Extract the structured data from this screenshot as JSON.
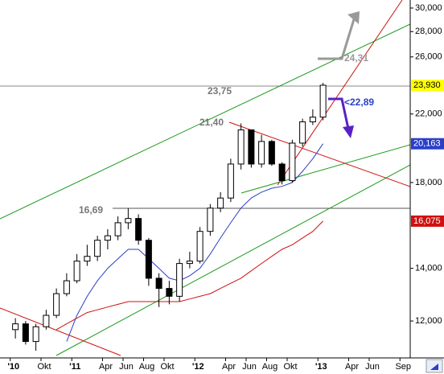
{
  "chart_data": {
    "type": "candlestick",
    "log_scale": true,
    "ylim": [
      10770,
      30715
    ],
    "yticks": [
      {
        "value": 12000,
        "label": "12,000"
      },
      {
        "value": 14000,
        "label": "14,000"
      },
      {
        "value": 18000,
        "label": "18,000"
      },
      {
        "value": 22000,
        "label": "22,000"
      },
      {
        "value": 26000,
        "label": "26,000"
      },
      {
        "value": 28000,
        "label": "28,000"
      },
      {
        "value": 30000,
        "label": "30,000"
      }
    ],
    "xlim": [
      "2010-06",
      "2013-10"
    ],
    "xticks": [
      {
        "value": "2010-07",
        "label": "'10"
      },
      {
        "value": "2010-10",
        "label": "Okt"
      },
      {
        "value": "2011-01",
        "label": "'11"
      },
      {
        "value": "2011-04",
        "label": "Apr"
      },
      {
        "value": "2011-06",
        "label": "Jun"
      },
      {
        "value": "2011-08",
        "label": "Aug"
      },
      {
        "value": "2011-10",
        "label": "Okt"
      },
      {
        "value": "2012-01",
        "label": "'12"
      },
      {
        "value": "2012-04",
        "label": "Apr"
      },
      {
        "value": "2012-06",
        "label": "Jun"
      },
      {
        "value": "2012-08",
        "label": "Aug"
      },
      {
        "value": "2012-10",
        "label": "Okt"
      },
      {
        "value": "2013-01",
        "label": "'13"
      },
      {
        "value": "2013-04",
        "label": "Apr"
      },
      {
        "value": "2013-06",
        "label": "Jun"
      },
      {
        "value": "2013-09",
        "label": "Sep"
      }
    ],
    "x": [
      "2010-07",
      "2010-08",
      "2010-09",
      "2010-10",
      "2010-11",
      "2010-12",
      "2011-01",
      "2011-02",
      "2011-03",
      "2011-04",
      "2011-05",
      "2011-06",
      "2011-07",
      "2011-08",
      "2011-09",
      "2011-10",
      "2011-11",
      "2011-12",
      "2012-01",
      "2012-02",
      "2012-03",
      "2012-04",
      "2012-05",
      "2012-06",
      "2012-07",
      "2012-08",
      "2012-09",
      "2012-10",
      "2012-11",
      "2012-12",
      "2013-01"
    ],
    "open": [
      11700,
      11900,
      11300,
      11800,
      12200,
      13000,
      13500,
      14300,
      14500,
      15200,
      15400,
      16000,
      16200,
      15200,
      13600,
      13200,
      12900,
      14200,
      14300,
      15600,
      16700,
      17200,
      19000,
      21000,
      19000,
      20300,
      19000,
      18100,
      20200,
      21500,
      21800
    ],
    "high": [
      12100,
      12000,
      11900,
      12400,
      13200,
      13800,
      14600,
      15000,
      15400,
      15700,
      16300,
      16690,
      16400,
      15300,
      13800,
      13500,
      14400,
      14700,
      15800,
      16900,
      17500,
      19300,
      21400,
      21000,
      20700,
      20400,
      19100,
      20400,
      21700,
      22300,
      24100
    ],
    "low": [
      11400,
      11200,
      11000,
      11700,
      12100,
      12900,
      13400,
      14100,
      14300,
      14800,
      15200,
      15700,
      15000,
      13300,
      12500,
      12600,
      12700,
      14000,
      14200,
      15400,
      16500,
      17000,
      18700,
      18800,
      18800,
      18900,
      17900,
      18000,
      20000,
      21300,
      21600
    ],
    "close": [
      11900,
      11300,
      11800,
      12200,
      13000,
      13500,
      14300,
      14500,
      15200,
      15400,
      16000,
      16200,
      15200,
      13600,
      13200,
      12900,
      14200,
      14300,
      15600,
      16700,
      17200,
      19000,
      21000,
      19000,
      20300,
      19000,
      18100,
      20200,
      21500,
      21800,
      23930
    ],
    "series": [
      {
        "color": "#2a3fc9",
        "values": [
          null,
          null,
          null,
          null,
          null,
          11300,
          12200,
          12900,
          13500,
          14000,
          14400,
          14800,
          14800,
          14400,
          14000,
          13600,
          13500,
          13700,
          14000,
          14600,
          15300,
          16000,
          16700,
          17200,
          17500,
          17700,
          17800,
          18000,
          18600,
          19300,
          20163
        ]
      },
      {
        "color": "#d01010",
        "values": [
          null,
          null,
          null,
          null,
          11700,
          11900,
          12100,
          12300,
          12400,
          12500,
          12600,
          12700,
          12700,
          12700,
          12700,
          12700,
          12700,
          12800,
          12900,
          13000,
          13200,
          13400,
          13600,
          13900,
          14200,
          14500,
          14800,
          15000,
          15300,
          15600,
          16075
        ]
      }
    ],
    "price_tags": [
      {
        "value": 23930,
        "label": "23,930",
        "color": "#ffff00",
        "text_color": "#000000"
      },
      {
        "value": 20163,
        "label": "20,163",
        "color": "#2a3fc9",
        "text_color": "#ffffff"
      },
      {
        "value": 16075,
        "label": "16,075",
        "color": "#d01010",
        "text_color": "#ffffff"
      }
    ],
    "annotations": [
      "24,31",
      "23,75",
      "21,40",
      "16,69",
      "<22,89"
    ]
  }
}
